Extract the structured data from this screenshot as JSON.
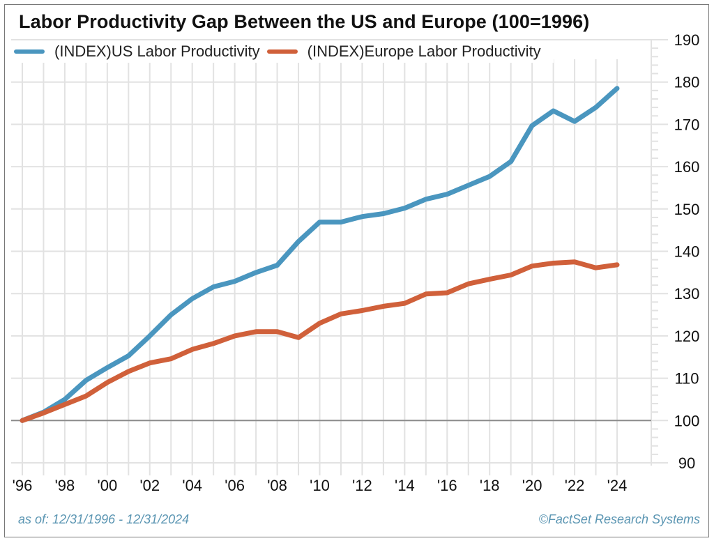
{
  "chart_data": {
    "type": "line",
    "title": "Labor Productivity Gap Between the US and Europe (100=1996)",
    "xlabel": "",
    "ylabel": "",
    "x": [
      1996,
      1997,
      1998,
      1999,
      2000,
      2001,
      2002,
      2003,
      2004,
      2005,
      2006,
      2007,
      2008,
      2009,
      2010,
      2011,
      2012,
      2013,
      2014,
      2015,
      2016,
      2017,
      2018,
      2019,
      2020,
      2021,
      2022,
      2023,
      2024
    ],
    "series": [
      {
        "name": "(INDEX)US Labor Productivity",
        "color": "#4a96bf",
        "values": [
          100,
          102,
          105,
          109.5,
          112.5,
          115.3,
          120,
          125,
          128.8,
          131.6,
          132.9,
          135,
          136.7,
          142.3,
          146.9,
          146.9,
          148.2,
          148.9,
          150.2,
          152.3,
          153.5,
          155.6,
          157.7,
          161.2,
          169.7,
          173.2,
          170.7,
          174,
          178.5
        ]
      },
      {
        "name": "(INDEX)Europe Labor Productivity",
        "color": "#d0603a",
        "values": [
          100,
          101.8,
          103.8,
          105.8,
          109,
          111.6,
          113.6,
          114.6,
          116.8,
          118.2,
          120,
          121,
          121,
          119.6,
          123,
          125.2,
          126,
          127,
          127.7,
          129.9,
          130.2,
          132.3,
          133.4,
          134.4,
          136.5,
          137.2,
          137.5,
          136.1,
          136.8
        ]
      }
    ],
    "xticks": [
      1996,
      1998,
      2000,
      2002,
      2004,
      2006,
      2008,
      2010,
      2012,
      2014,
      2016,
      2018,
      2020,
      2022,
      2024
    ],
    "xtick_labels": [
      "'96",
      "'98",
      "'00",
      "'02",
      "'04",
      "'06",
      "'08",
      "'10",
      "'12",
      "'14",
      "'16",
      "'18",
      "'20",
      "'22",
      "'24"
    ],
    "yticks": [
      90,
      100,
      110,
      120,
      130,
      140,
      150,
      160,
      170,
      180,
      190
    ],
    "ytick_labels": [
      "90",
      "100",
      "110",
      "120",
      "130",
      "140",
      "150",
      "160",
      "170",
      "180",
      "190"
    ],
    "ylim": [
      90,
      190
    ],
    "xlim": [
      1995.5,
      2025.5
    ],
    "y_axis_side": "right",
    "reference_line": 100,
    "grid": true,
    "legend_position": "top-left"
  },
  "footer": {
    "as_of": "as of: 12/31/1996 - 12/31/2024",
    "source": "©FactSet Research Systems"
  }
}
